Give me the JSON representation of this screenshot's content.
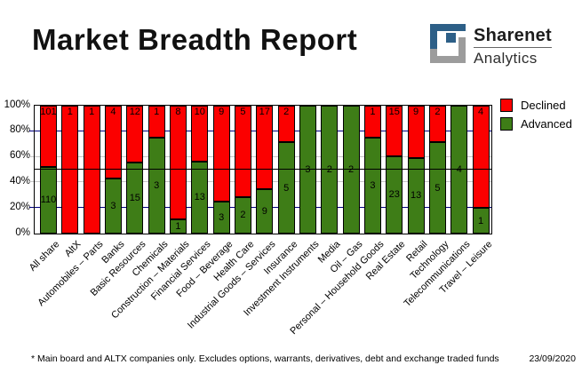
{
  "header": {
    "title": "Market Breadth Report",
    "logo": {
      "name": "Sharenet",
      "sub": "Analytics"
    }
  },
  "chart_data": {
    "type": "bar",
    "subtype": "100%-stacked-columns",
    "title": "Market Breadth Report",
    "xlabel": "",
    "ylabel": "",
    "ylim": [
      0,
      100
    ],
    "y_ticks": [
      "0%",
      "20%",
      "40%",
      "60%",
      "80%",
      "100%"
    ],
    "legend_position": "top-right",
    "categories": [
      "All share",
      "AltX",
      "Automobiles – Parts",
      "Banks",
      "Basic Resources",
      "Chemicals",
      "Construction – Materials",
      "Financial Services",
      "Food – Beverage",
      "Health Care",
      "Industrial Goods – Services",
      "Insurance",
      "Investment Instruments",
      "Media",
      "Oil – Gas",
      "Personal – Household Goods",
      "Real Estate",
      "Retail",
      "Technology",
      "Telecommunications",
      "Travel – Leisure"
    ],
    "series": [
      {
        "name": "Declined",
        "color": "#fb0000",
        "values": [
          101,
          1,
          1,
          4,
          12,
          1,
          8,
          10,
          9,
          5,
          17,
          2,
          0,
          0,
          0,
          1,
          15,
          9,
          2,
          0,
          4
        ]
      },
      {
        "name": "Advanced",
        "color": "#3e7d17",
        "values": [
          110,
          0,
          0,
          3,
          15,
          3,
          1,
          13,
          3,
          2,
          9,
          5,
          3,
          2,
          2,
          3,
          23,
          13,
          5,
          4,
          1
        ]
      }
    ],
    "gridlines": [
      {
        "pct": 20,
        "color": "#000080"
      },
      {
        "pct": 40,
        "color": "#c6c6c6"
      },
      {
        "pct": 60,
        "color": "#c6c6c6"
      },
      {
        "pct": 80,
        "color": "#000080"
      }
    ],
    "reference_line_pct": 50,
    "grid": "on"
  },
  "legend": {
    "items": [
      {
        "label": "Declined",
        "color": "#fb0000"
      },
      {
        "label": "Advanced",
        "color": "#3e7d17"
      }
    ]
  },
  "footer": {
    "note": "* Main board and ALTX companies only. Excludes options, warrants, derivatives, debt and exchange traded funds",
    "date": "23/09/2020"
  },
  "logo_colors": {
    "blue": "#2d5f87",
    "gray": "#9c9c9c"
  }
}
